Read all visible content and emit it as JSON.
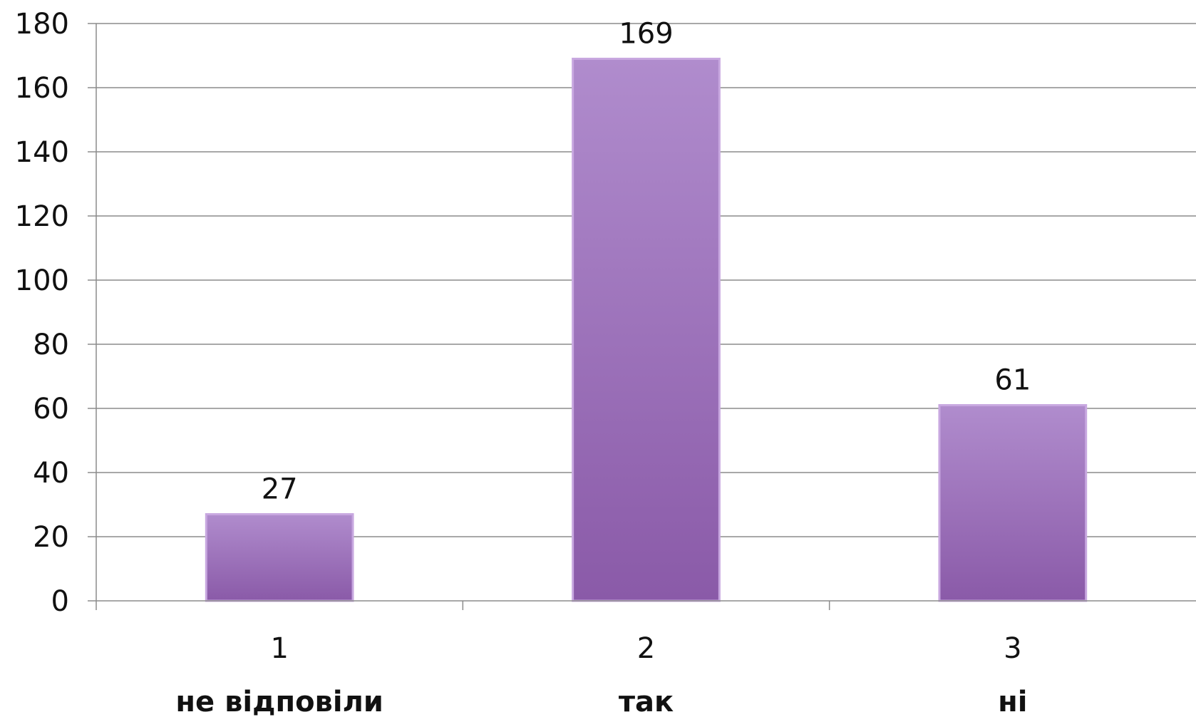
{
  "chart_data": {
    "type": "bar",
    "categories": [
      "1",
      "2",
      "3"
    ],
    "category_labels": [
      "не відповіли",
      "так",
      "ні"
    ],
    "values": [
      27,
      169,
      61
    ],
    "data_labels": [
      "27",
      "169",
      "61"
    ],
    "ylim": [
      0,
      180
    ],
    "yticks": [
      0,
      20,
      40,
      60,
      80,
      100,
      120,
      140,
      160,
      180
    ],
    "title": "",
    "xlabel": "",
    "ylabel": "",
    "grid": true,
    "legend": "none",
    "colors": {
      "bar_top": "#b08ccd",
      "bar_bottom": "#8a5aa8",
      "bar_border": "#c8a8e0",
      "grid": "#8c8c8c",
      "axis": "#8c8c8c",
      "text": "#111111"
    }
  }
}
